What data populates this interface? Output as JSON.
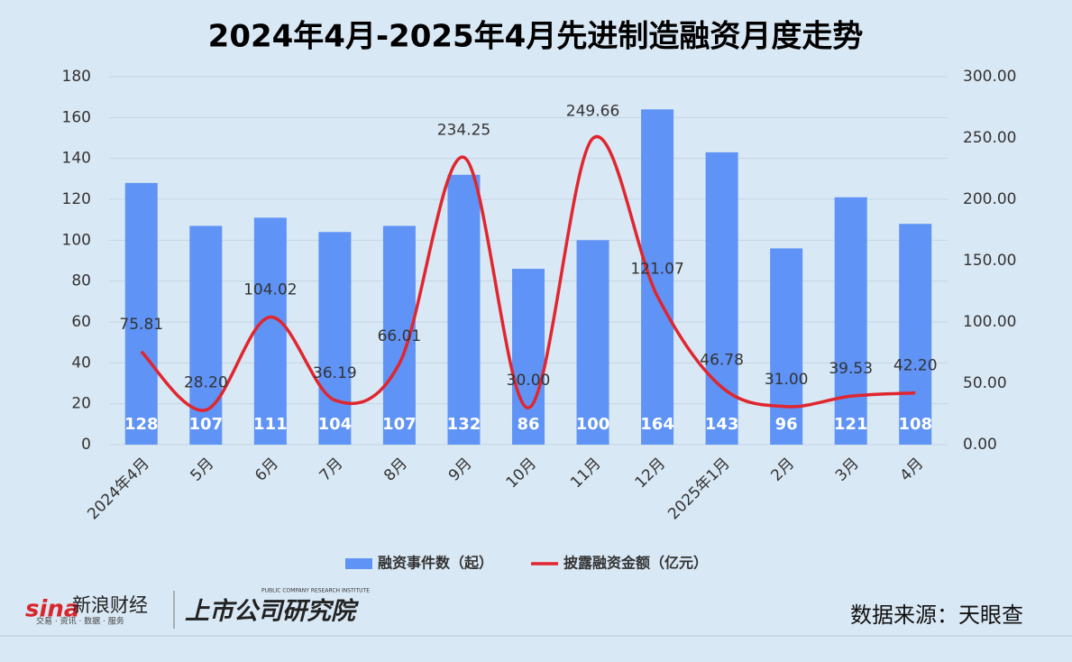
{
  "chart_data": {
    "type": "bar-line",
    "title": "2024年4月-2025年4月先进制造融资月度走势",
    "categories": [
      "2024年4月",
      "5月",
      "6月",
      "7月",
      "8月",
      "9月",
      "10月",
      "11月",
      "12月",
      "2025年1月",
      "2月",
      "3月",
      "4月"
    ],
    "series": [
      {
        "name": "融资事件数（起）",
        "type": "bar",
        "color": "#5f93f5",
        "values": [
          128,
          107,
          111,
          104,
          107,
          132,
          86,
          100,
          164,
          143,
          96,
          121,
          108
        ]
      },
      {
        "name": "披露融资金额（亿元）",
        "type": "line",
        "smooth": true,
        "axis": "y2",
        "color": "#e0262e",
        "values": [
          75.81,
          28.2,
          104.02,
          36.19,
          66.01,
          234.25,
          30,
          249.66,
          121.07,
          46.78,
          31,
          39.53,
          42.2
        ],
        "value_labels": [
          "75.81",
          "28.20",
          "104.02",
          "36.19",
          "66.01",
          "234.25",
          "30.00",
          "249.66",
          "121.07",
          "46.78",
          "31.00",
          "39.53",
          "42.20"
        ]
      }
    ],
    "ylim": [
      0,
      180
    ],
    "yticks": [
      0,
      20,
      40,
      60,
      80,
      100,
      120,
      140,
      160,
      180
    ],
    "y2lim": [
      0,
      300
    ],
    "y2ticks": [
      {
        "value": 0,
        "label": "0.00"
      },
      {
        "value": 50,
        "label": "50.00"
      },
      {
        "value": 100,
        "label": "100.00"
      },
      {
        "value": 150,
        "label": "150.00"
      },
      {
        "value": 200,
        "label": "200.00"
      },
      {
        "value": 250,
        "label": "250.00"
      },
      {
        "value": 300,
        "label": "300.00"
      }
    ],
    "grid": true,
    "legend": "bottom"
  },
  "footer": {
    "source": "数据来源：天眼查",
    "sina_mark": "sina",
    "sina_name": "新浪财经",
    "sina_tagline": "交易 · 资讯 · 数据 · 服务",
    "institute_name": "上市公司研究院",
    "institute_en": "PUBLIC COMPANY RESEARCH INSTITUTE"
  }
}
